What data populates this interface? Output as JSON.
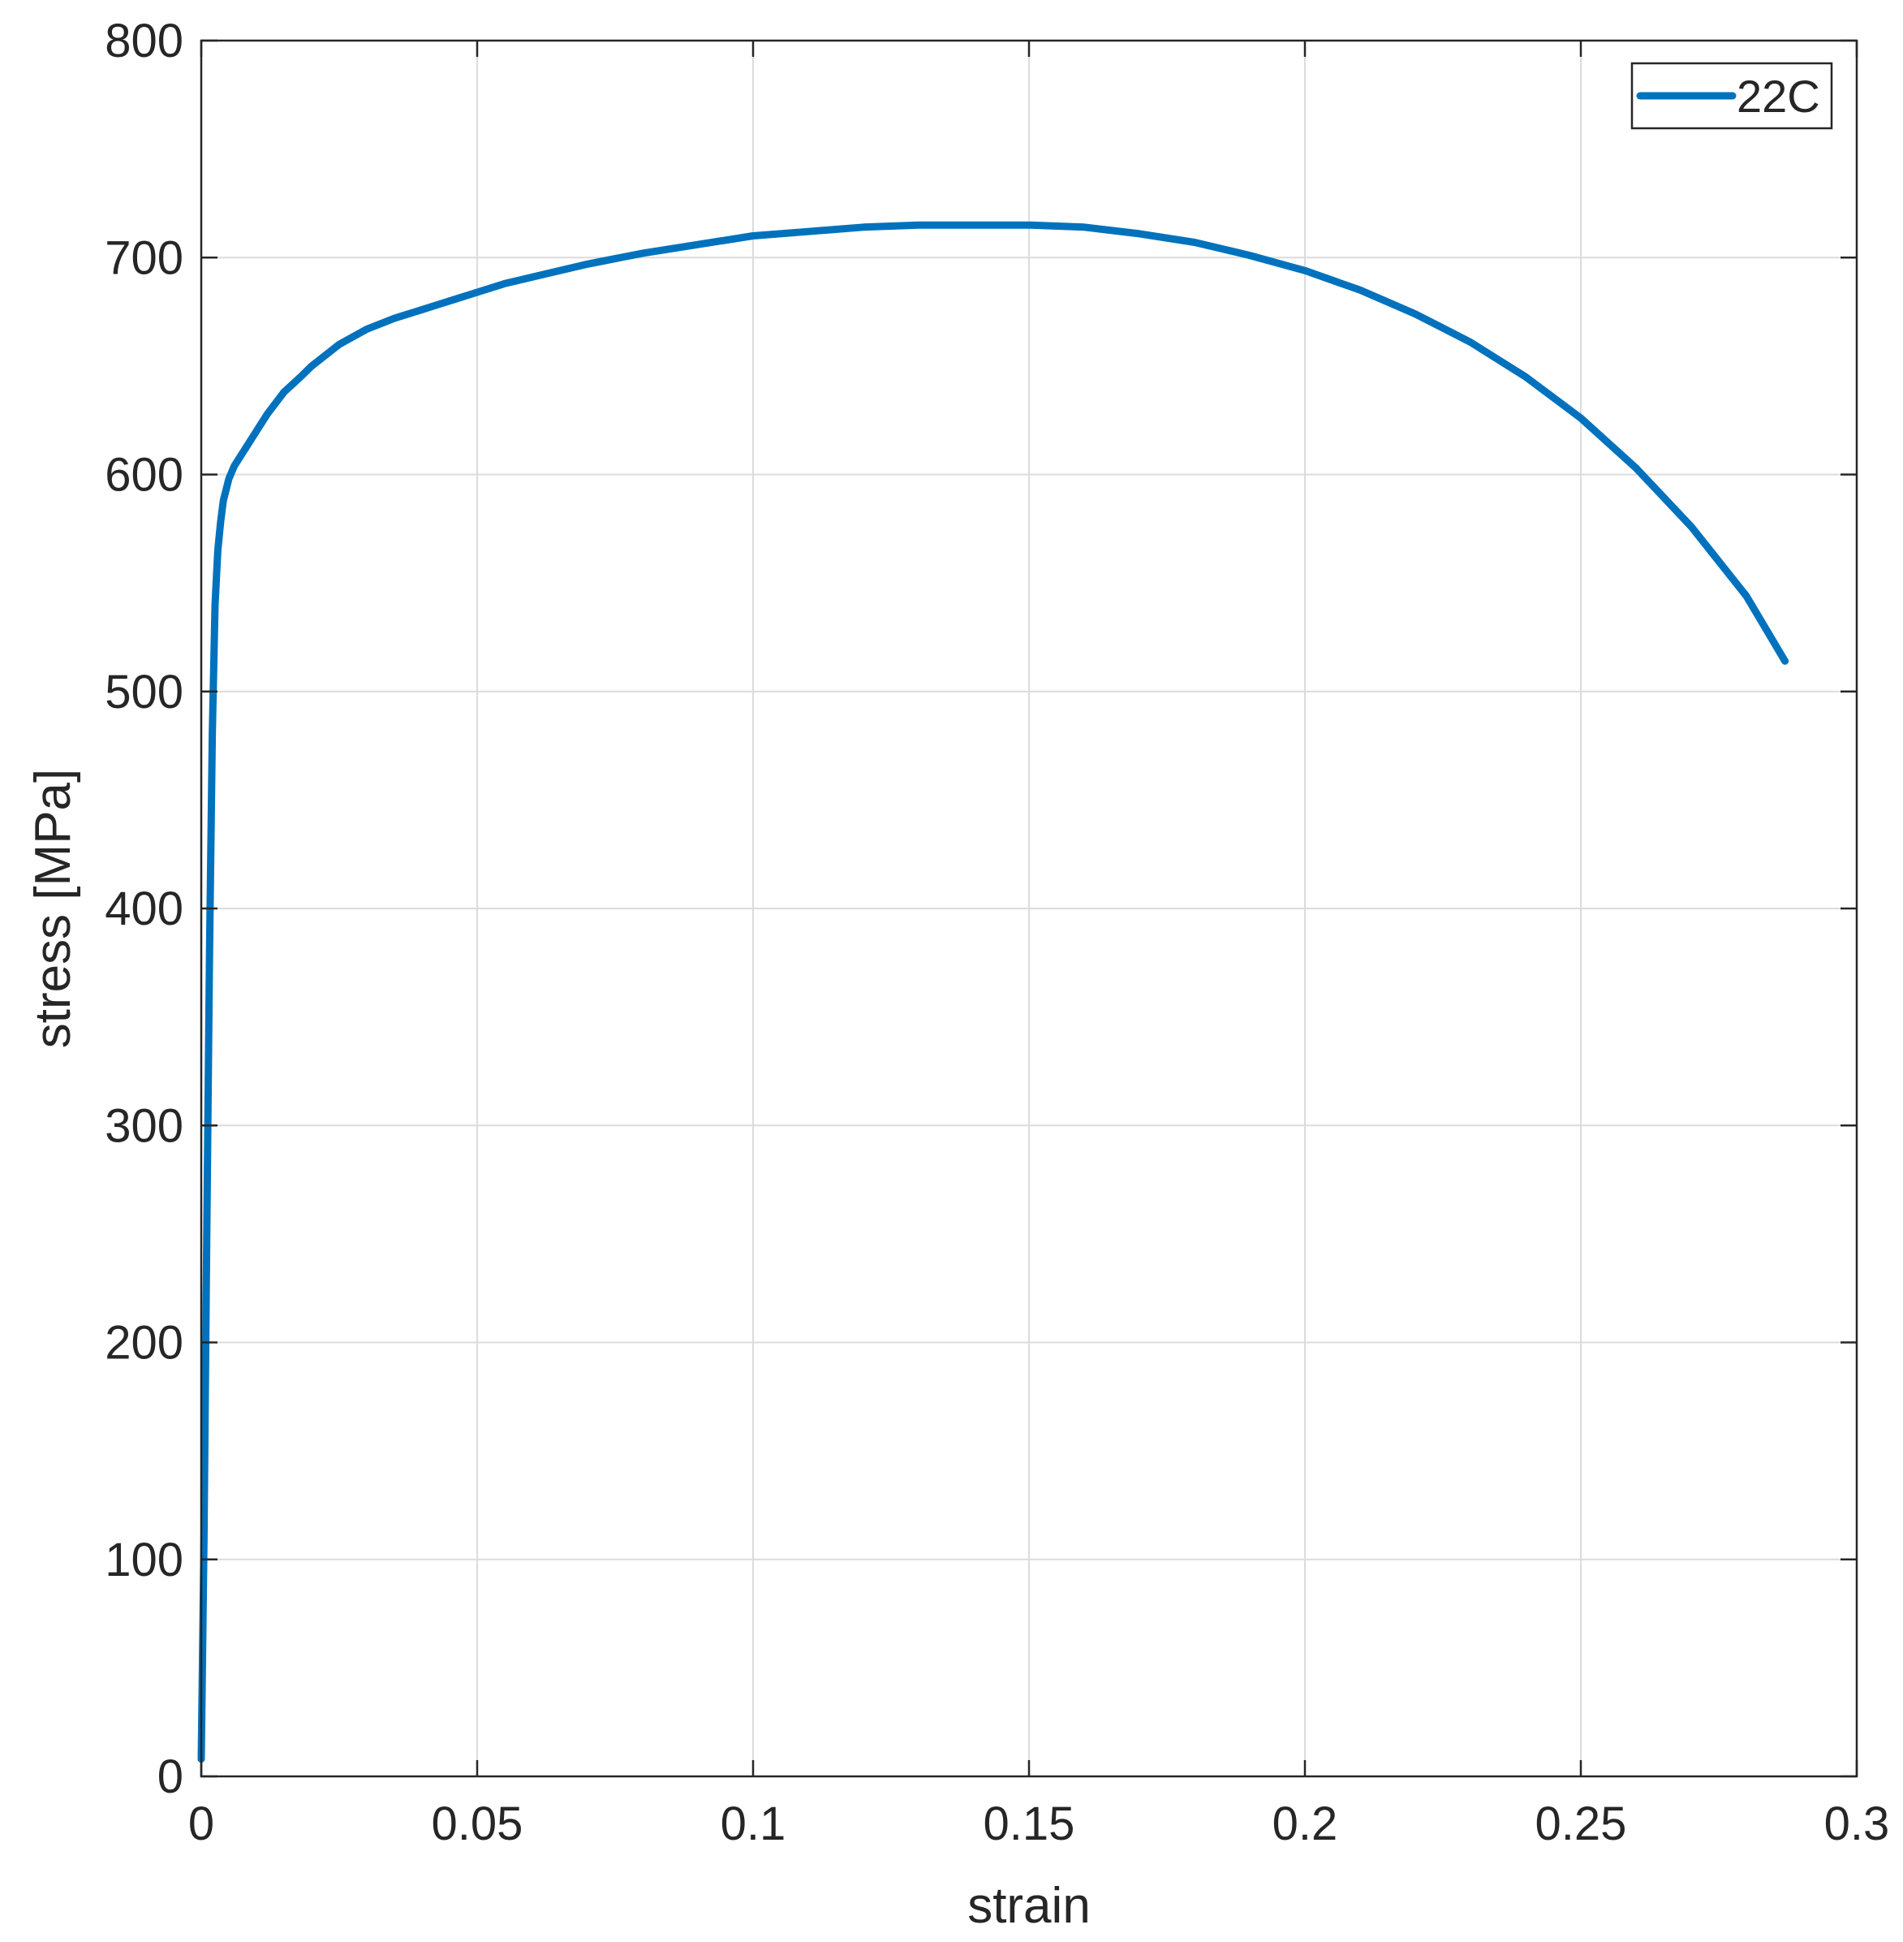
{
  "chart_data": {
    "type": "line",
    "title": "",
    "xlabel": "strain",
    "ylabel": "stress [MPa]",
    "xlim": [
      0,
      0.3
    ],
    "ylim": [
      0,
      800
    ],
    "x_ticks": [
      0,
      0.05,
      0.1,
      0.15,
      0.2,
      0.25,
      0.3
    ],
    "x_tick_labels": [
      "0",
      "0.05",
      "0.1",
      "0.15",
      "0.2",
      "0.25",
      "0.3"
    ],
    "y_ticks": [
      0,
      100,
      200,
      300,
      400,
      500,
      600,
      700,
      800
    ],
    "y_tick_labels": [
      "0",
      "100",
      "200",
      "300",
      "400",
      "500",
      "600",
      "700",
      "800"
    ],
    "grid": true,
    "legend_position": "top-right",
    "series_color": "#0072BD",
    "series": [
      {
        "name": "22C",
        "x": [
          0.0,
          0.0005,
          0.001,
          0.0015,
          0.002,
          0.0025,
          0.003,
          0.0035,
          0.004,
          0.005,
          0.006,
          0.007,
          0.008,
          0.01,
          0.012,
          0.015,
          0.018,
          0.02,
          0.025,
          0.03,
          0.035,
          0.04,
          0.045,
          0.05,
          0.055,
          0.06,
          0.065,
          0.07,
          0.08,
          0.09,
          0.1,
          0.11,
          0.12,
          0.13,
          0.138,
          0.15,
          0.16,
          0.17,
          0.18,
          0.19,
          0.2,
          0.21,
          0.22,
          0.23,
          0.24,
          0.25,
          0.26,
          0.27,
          0.28,
          0.287
        ],
        "y": [
          8,
          110,
          250,
          380,
          480,
          540,
          565,
          578,
          588,
          598,
          604,
          608,
          612,
          620,
          628,
          638,
          645,
          650,
          660,
          667,
          672,
          676,
          680,
          684,
          688,
          691,
          694,
          697,
          702,
          706,
          710,
          712,
          714,
          715,
          715,
          715,
          714,
          711,
          707,
          701,
          694,
          685,
          674,
          661,
          645,
          626,
          603,
          576,
          544,
          514
        ]
      }
    ]
  }
}
